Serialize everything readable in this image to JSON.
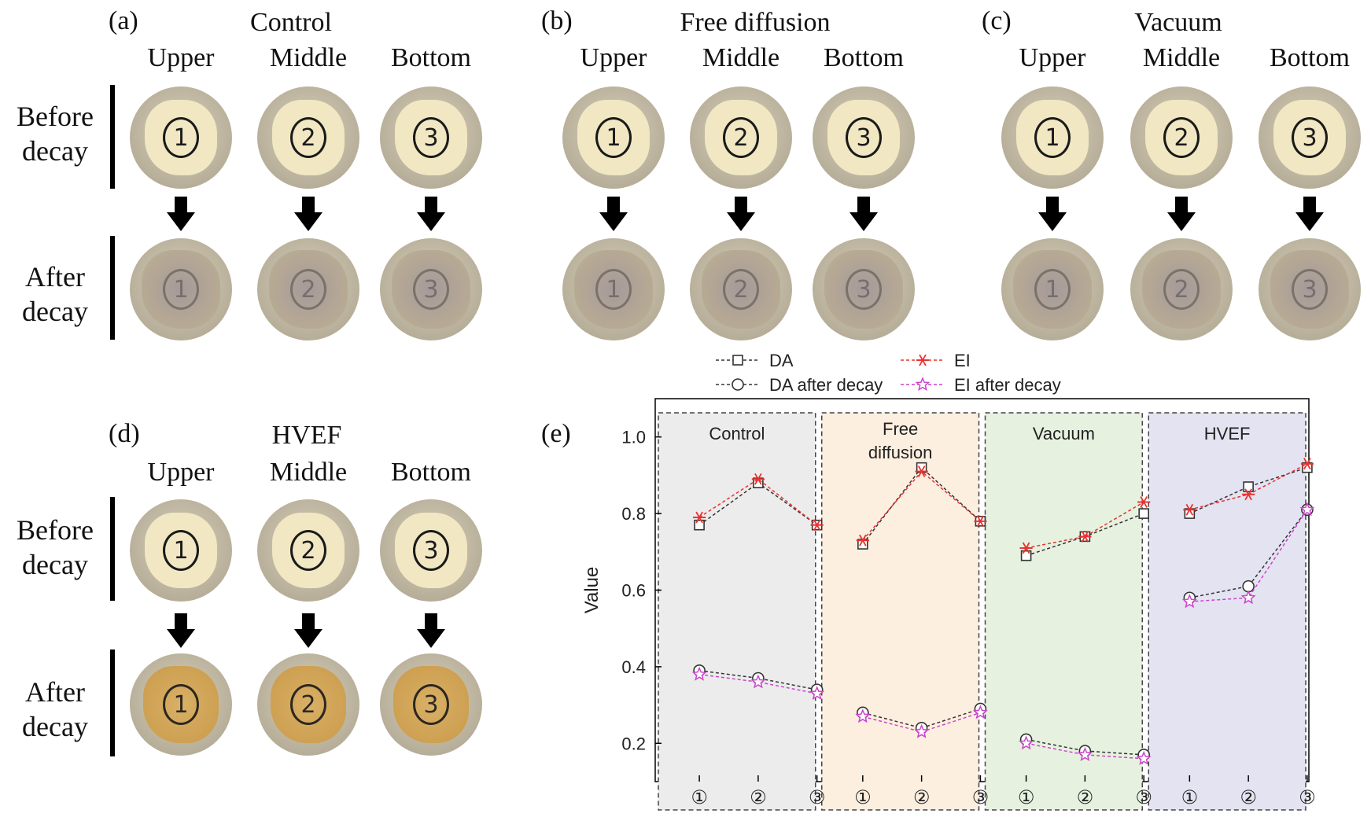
{
  "panels": {
    "a": {
      "letter": "(a)",
      "title": "Control",
      "columns": [
        "Upper",
        "Middle",
        "Bottom"
      ],
      "rows": {
        "before": "Before\ndecay",
        "after": "After\ndecay"
      },
      "labels": [
        "1",
        "2",
        "3"
      ]
    },
    "b": {
      "letter": "(b)",
      "title": "Free diffusion",
      "columns": [
        "Upper",
        "Middle",
        "Bottom"
      ],
      "labels": [
        "1",
        "2",
        "3"
      ]
    },
    "c": {
      "letter": "(c)",
      "title": "Vacuum",
      "columns": [
        "Upper",
        "Middle",
        "Bottom"
      ],
      "labels": [
        "1",
        "2",
        "3"
      ]
    },
    "d": {
      "letter": "(d)",
      "title": "HVEF",
      "columns": [
        "Upper",
        "Middle",
        "Bottom"
      ],
      "rows": {
        "before": "Before\ndecay",
        "after": "After\ndecay"
      },
      "labels": [
        "1",
        "2",
        "3"
      ]
    },
    "e": {
      "letter": "(e)"
    }
  },
  "chart_data": {
    "type": "line",
    "ylabel": "Value",
    "ylim": [
      0.1,
      1.1
    ],
    "yticks": [
      "0.2",
      "0.4",
      "0.6",
      "0.8",
      "1.0"
    ],
    "groups": [
      "Control",
      "Free\ndiffusion",
      "Vacuum",
      "HVEF"
    ],
    "group_colors": [
      "#ececec",
      "#fdefe0",
      "#e6f2df",
      "#e4e3f2"
    ],
    "x_tick_labels": [
      "①",
      "②",
      "③"
    ],
    "legend": [
      "DA",
      "EI",
      "DA after decay",
      "EI after decay"
    ],
    "legend_placement": "top",
    "series": [
      {
        "name": "DA",
        "color": "#333333",
        "marker": "square",
        "values": [
          [
            0.77,
            0.88,
            0.77
          ],
          [
            0.72,
            0.92,
            0.78
          ],
          [
            0.69,
            0.74,
            0.8
          ],
          [
            0.8,
            0.87,
            0.92
          ]
        ]
      },
      {
        "name": "EI",
        "color": "#e8322f",
        "marker": "asterisk",
        "values": [
          [
            0.79,
            0.89,
            0.77
          ],
          [
            0.73,
            0.91,
            0.78
          ],
          [
            0.71,
            0.74,
            0.83
          ],
          [
            0.81,
            0.85,
            0.93
          ]
        ]
      },
      {
        "name": "DA after decay",
        "color": "#333333",
        "marker": "circle",
        "values": [
          [
            0.39,
            0.37,
            0.34
          ],
          [
            0.28,
            0.24,
            0.29
          ],
          [
            0.21,
            0.18,
            0.17
          ],
          [
            0.58,
            0.61,
            0.81
          ]
        ]
      },
      {
        "name": "EI after decay",
        "color": "#cc44cc",
        "marker": "star",
        "values": [
          [
            0.38,
            0.36,
            0.33
          ],
          [
            0.27,
            0.23,
            0.28
          ],
          [
            0.2,
            0.17,
            0.16
          ],
          [
            0.57,
            0.58,
            0.81
          ]
        ]
      }
    ]
  },
  "colors": {
    "frame": "#a9a08a",
    "wood": "#f1e7c2",
    "decayed": "#b7aa94",
    "hvef_after": "#c99a4a"
  }
}
